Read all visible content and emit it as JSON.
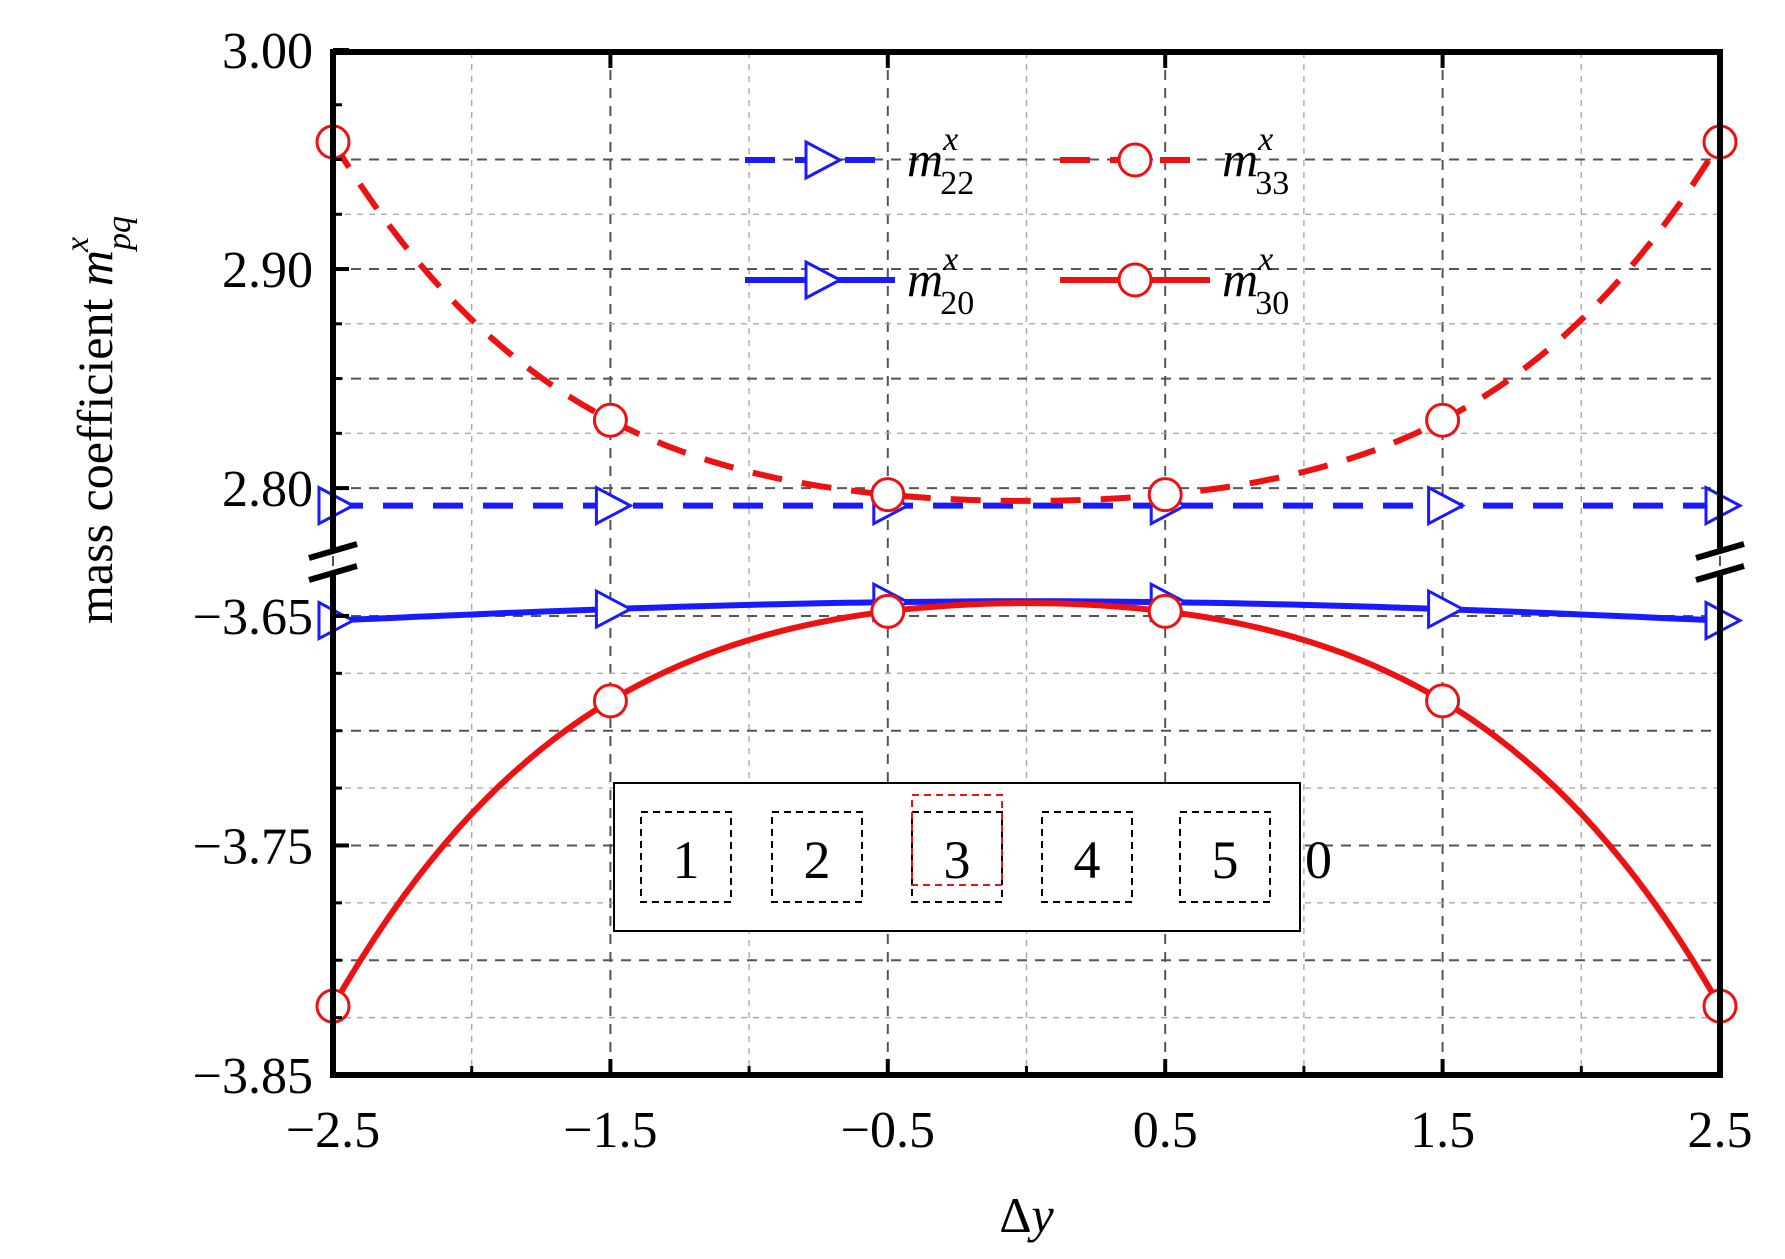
{
  "chart_data": {
    "type": "line",
    "x": [
      -2.5,
      -1.5,
      -0.5,
      0.5,
      1.5,
      2.5
    ],
    "xlabel": "Δy",
    "ylabel": "mass coefficient",
    "ylabel_symbol": "m",
    "ylabel_sup": "x",
    "ylabel_sub": "pq",
    "xlim": [
      -2.5,
      2.5
    ],
    "x_ticks": [
      "−2.5",
      "−1.5",
      "−0.5",
      "0.5",
      "1.5",
      "2.5"
    ],
    "y_axis_broken": true,
    "upper_segment": {
      "ylim": [
        2.79,
        3.0
      ],
      "ticks": [
        "2.80",
        "2.90",
        "3.00"
      ]
    },
    "lower_segment": {
      "ylim": [
        -3.85,
        -3.64
      ],
      "ticks": [
        "−3.85",
        "−3.75",
        "−3.65"
      ]
    },
    "grid": true,
    "legend_placement": "top-center",
    "series": [
      {
        "name": "m22",
        "legend_symbol": "m",
        "legend_sup": "x",
        "legend_sub": "22",
        "segment": "upper",
        "style": "dashed",
        "marker": "triangle-right",
        "color": "#1a1aff",
        "values": [
          2.792,
          2.792,
          2.792,
          2.792,
          2.792,
          2.792
        ]
      },
      {
        "name": "m33",
        "legend_symbol": "m",
        "legend_sup": "x",
        "legend_sub": "33",
        "segment": "upper",
        "style": "dashed",
        "marker": "circle",
        "color": "#ee1111",
        "values": [
          2.958,
          2.831,
          2.797,
          2.797,
          2.831,
          2.958
        ]
      },
      {
        "name": "m20",
        "legend_symbol": "m",
        "legend_sup": "x",
        "legend_sub": "20",
        "segment": "lower",
        "style": "solid",
        "marker": "triangle-right",
        "color": "#1a1aff",
        "values": [
          -3.652,
          -3.647,
          -3.644,
          -3.644,
          -3.647,
          -3.652
        ]
      },
      {
        "name": "m30",
        "legend_symbol": "m",
        "legend_sup": "x",
        "legend_sub": "30",
        "segment": "lower",
        "style": "solid",
        "marker": "circle",
        "color": "#ee1111",
        "values": [
          -3.82,
          -3.687,
          -3.648,
          -3.648,
          -3.687,
          -3.82
        ]
      }
    ],
    "inset": {
      "boxes": [
        "1",
        "2",
        "3",
        "4",
        "5"
      ],
      "highlighted_box": "3",
      "trailing_label": "0"
    }
  }
}
